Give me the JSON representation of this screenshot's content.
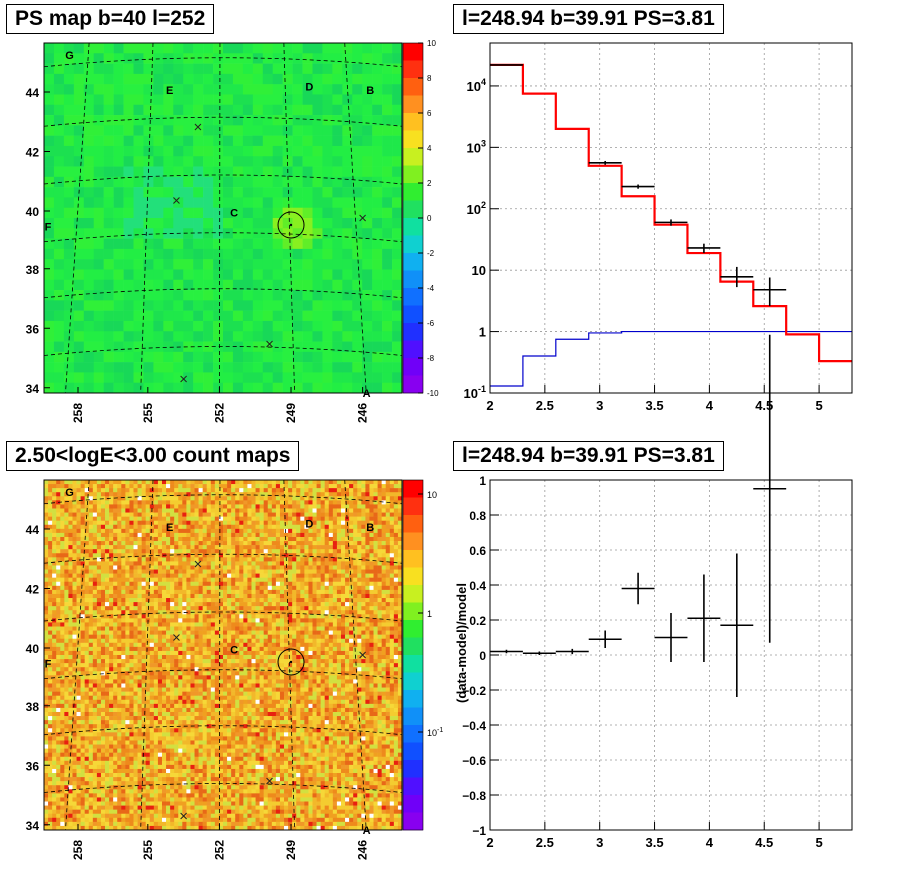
{
  "panels": {
    "map_top_title": "PS map b=40 l=252",
    "spectrum_title": "l=248.94 b=39.91 PS=3.81",
    "map_bottom_title": "2.50<logE<3.00 count maps",
    "residual_title": "l=248.94 b=39.91 PS=3.81"
  },
  "colors": {
    "model": "#ff0000",
    "background": "#0000cc",
    "data": "#000000",
    "map_top_base": "#22ee44",
    "map_bottom_base": "#f0a020"
  },
  "chart_data": [
    {
      "type": "heatmap",
      "title": "PS map b=40 l=252",
      "xlabel": "",
      "ylabel": "",
      "x_ticks": [
        "258",
        "255",
        "252",
        "249",
        "246"
      ],
      "y_ticks": [
        "34",
        "36",
        "38",
        "40",
        "42",
        "44"
      ],
      "colorbar": {
        "range": [
          -10,
          10
        ],
        "ticks": [
          "10",
          "8",
          "6",
          "4",
          "2",
          "0",
          "-2",
          "-4",
          "-6",
          "-8",
          "-10"
        ]
      },
      "source_labels": [
        "G",
        "E",
        "D",
        "B",
        "C",
        "F",
        "A"
      ]
    },
    {
      "type": "line",
      "title": "l=248.94 b=39.91 PS=3.81",
      "xlabel": "",
      "ylabel": "",
      "xlim": [
        2,
        5.3
      ],
      "ylim": [
        0.1,
        50000
      ],
      "yscale": "log",
      "grid": true,
      "x_ticks": [
        "2",
        "2.5",
        "3",
        "3.5",
        "4",
        "4.5",
        "5"
      ],
      "y_ticks": [
        "10^{-1}",
        "1",
        "10",
        "10^{2}",
        "10^{3}",
        "10^{4}"
      ],
      "bin_edges": [
        2.0,
        2.3,
        2.6,
        2.9,
        3.2,
        3.5,
        3.8,
        4.1,
        4.4,
        4.7,
        5.0,
        5.3
      ],
      "series": [
        {
          "values": [
            22000,
            7500,
            2000,
            500,
            160,
            55,
            19,
            6.5,
            2.6,
            0.9,
            0.33
          ]
        },
        {
          "values": [
            0.13,
            0.4,
            0.75,
            0.95,
            1.0,
            1.0,
            1.0,
            1.0,
            1.0,
            1.0,
            1.0
          ]
        },
        {
          "x": [
            2.15,
            3.05,
            3.35,
            3.65,
            3.95,
            4.25,
            4.55
          ],
          "y": [
            22000,
            560,
            230,
            60,
            23,
            7.8,
            4.8
          ],
          "xerr": [
            0.15,
            0.15,
            0.15,
            0.15,
            0.15,
            0.15,
            0.15
          ],
          "yerr_low": [
            300,
            40,
            18,
            7,
            4,
            2.5,
            2.2
          ],
          "yerr_high": [
            300,
            40,
            18,
            7,
            4,
            3.5,
            2.8
          ]
        }
      ]
    },
    {
      "type": "heatmap",
      "title": "2.50<logE<3.00 count maps",
      "xlabel": "",
      "ylabel": "",
      "x_ticks": [
        "258",
        "255",
        "252",
        "249",
        "246"
      ],
      "y_ticks": [
        "34",
        "36",
        "38",
        "40",
        "42",
        "44"
      ],
      "colorbar": {
        "scale": "log",
        "ticks": [
          "10",
          "1",
          "10^{-1}"
        ]
      },
      "source_labels": [
        "G",
        "E",
        "D",
        "B",
        "C",
        "F",
        "A"
      ]
    },
    {
      "type": "scatter",
      "title": "l=248.94 b=39.91 PS=3.81",
      "xlabel": "",
      "ylabel": "(data-model)/model",
      "xlim": [
        2,
        5.3
      ],
      "ylim": [
        -1,
        1
      ],
      "grid": true,
      "x_ticks": [
        "2",
        "2.5",
        "3",
        "3.5",
        "4",
        "4.5",
        "5"
      ],
      "y_ticks": [
        "-1",
        "-0.8",
        "-0.6",
        "-0.4",
        "-0.2",
        "0",
        "0.2",
        "0.4",
        "0.6",
        "0.8",
        "1"
      ],
      "series": [
        {
          "x": [
            2.15,
            2.45,
            2.75,
            3.05,
            3.35,
            3.65,
            3.95,
            4.25,
            4.55
          ],
          "y": [
            0.02,
            0.01,
            0.02,
            0.09,
            0.38,
            0.1,
            0.21,
            0.17,
            0.95
          ],
          "xerr": [
            0.15,
            0.15,
            0.15,
            0.15,
            0.15,
            0.15,
            0.15,
            0.15,
            0.15
          ],
          "yerr": [
            0.01,
            0.01,
            0.015,
            0.05,
            0.09,
            0.14,
            0.25,
            0.41,
            0.88
          ]
        }
      ]
    }
  ]
}
